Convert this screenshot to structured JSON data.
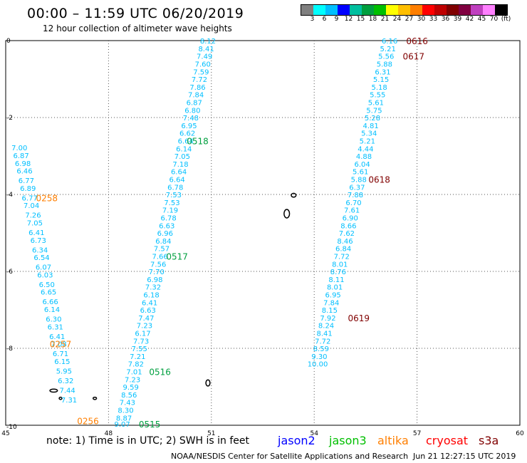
{
  "header": {
    "title": "00:00 – 11:59 UTC 06/20/2019",
    "subtitle": "12 hour collection of altimeter wave heights"
  },
  "legend": {
    "colors": [
      "#808080",
      "#00ffff",
      "#00bfff",
      "#0000ff",
      "#00bf9f",
      "#009f3f",
      "#00bf00",
      "#ffff00",
      "#ffbf00",
      "#ff7f00",
      "#ff0000",
      "#bf0000",
      "#800000",
      "#800040",
      "#bf40bf",
      "#ff80ff",
      "#000000"
    ],
    "labels": [
      "3",
      "6",
      "9",
      "12",
      "15",
      "18",
      "21",
      "24",
      "27",
      "30",
      "33",
      "36",
      "39",
      "42",
      "45",
      "70",
      "(ft)"
    ]
  },
  "chart_data": {
    "type": "scatter",
    "xlim": [
      45,
      60
    ],
    "ylim": [
      -10,
      0
    ],
    "x_ticks": [
      "45",
      "48",
      "51",
      "54",
      "57",
      "60"
    ],
    "y_ticks": [
      "0",
      "-2",
      "-4",
      "-6",
      "-8",
      "-10"
    ],
    "grid": true,
    "series": [
      {
        "name": "altika",
        "color": "#00bfff",
        "points": [
          {
            "x": 45.4,
            "y": -2.8,
            "v": "7.00"
          },
          {
            "x": 45.45,
            "y": -3.0,
            "v": "6.87"
          },
          {
            "x": 45.5,
            "y": -3.2,
            "v": "6.98"
          },
          {
            "x": 45.55,
            "y": -3.4,
            "v": "6.46"
          },
          {
            "x": 45.6,
            "y": -3.65,
            "v": "6.77"
          },
          {
            "x": 45.65,
            "y": -3.85,
            "v": "6.89"
          },
          {
            "x": 45.7,
            "y": -4.1,
            "v": "6.77"
          },
          {
            "x": 45.75,
            "y": -4.3,
            "v": "7.04"
          },
          {
            "x": 45.8,
            "y": -4.55,
            "v": "7.26"
          },
          {
            "x": 45.85,
            "y": -4.75,
            "v": "7.05"
          },
          {
            "x": 45.9,
            "y": -5.0,
            "v": "6.41"
          },
          {
            "x": 45.95,
            "y": -5.2,
            "v": "6.73"
          },
          {
            "x": 46.0,
            "y": -5.45,
            "v": "6.34"
          },
          {
            "x": 46.05,
            "y": -5.65,
            "v": "6.54"
          },
          {
            "x": 46.1,
            "y": -5.9,
            "v": "6.07"
          },
          {
            "x": 46.15,
            "y": -6.1,
            "v": "6.03"
          },
          {
            "x": 46.2,
            "y": -6.35,
            "v": "6.50"
          },
          {
            "x": 46.25,
            "y": -6.55,
            "v": "6.65"
          },
          {
            "x": 46.3,
            "y": -6.8,
            "v": "6.66"
          },
          {
            "x": 46.35,
            "y": -7.0,
            "v": "6.14"
          },
          {
            "x": 46.4,
            "y": -7.25,
            "v": "6.30"
          },
          {
            "x": 46.45,
            "y": -7.45,
            "v": "6.31"
          },
          {
            "x": 46.5,
            "y": -7.7,
            "v": "6.41"
          },
          {
            "x": 46.55,
            "y": -7.9,
            "v": "7.08"
          },
          {
            "x": 46.6,
            "y": -8.15,
            "v": "6.71"
          },
          {
            "x": 46.65,
            "y": -8.35,
            "v": "6.15"
          },
          {
            "x": 46.7,
            "y": -8.6,
            "v": "5.95"
          },
          {
            "x": 46.75,
            "y": -8.85,
            "v": "6.32"
          },
          {
            "x": 46.8,
            "y": -9.1,
            "v": "7.44"
          },
          {
            "x": 46.85,
            "y": -9.35,
            "v": "7.31"
          }
        ]
      },
      {
        "name": "jason3",
        "color": "#00bfff",
        "points": [
          {
            "x": 50.9,
            "y": -0.02,
            "v": "8.12"
          },
          {
            "x": 50.85,
            "y": -0.22,
            "v": "8.41"
          },
          {
            "x": 50.8,
            "y": -0.42,
            "v": "7.49"
          },
          {
            "x": 50.75,
            "y": -0.62,
            "v": "7.60"
          },
          {
            "x": 50.7,
            "y": -0.82,
            "v": "7.59"
          },
          {
            "x": 50.65,
            "y": -1.02,
            "v": "7.72"
          },
          {
            "x": 50.6,
            "y": -1.22,
            "v": "7.86"
          },
          {
            "x": 50.55,
            "y": -1.42,
            "v": "7.84"
          },
          {
            "x": 50.5,
            "y": -1.62,
            "v": "6.87"
          },
          {
            "x": 50.45,
            "y": -1.82,
            "v": "6.80"
          },
          {
            "x": 50.4,
            "y": -2.02,
            "v": "7.48"
          },
          {
            "x": 50.35,
            "y": -2.22,
            "v": "6.95"
          },
          {
            "x": 50.3,
            "y": -2.42,
            "v": "6.62"
          },
          {
            "x": 50.25,
            "y": -2.62,
            "v": "6.64"
          },
          {
            "x": 50.2,
            "y": -2.82,
            "v": "6.14"
          },
          {
            "x": 50.15,
            "y": -3.02,
            "v": "7.05"
          },
          {
            "x": 50.1,
            "y": -3.22,
            "v": "7.18"
          },
          {
            "x": 50.05,
            "y": -3.42,
            "v": "6.64"
          },
          {
            "x": 50.0,
            "y": -3.62,
            "v": "6.64"
          },
          {
            "x": 49.95,
            "y": -3.82,
            "v": "6.78"
          },
          {
            "x": 49.9,
            "y": -4.02,
            "v": "7.53"
          },
          {
            "x": 49.85,
            "y": -4.22,
            "v": "7.53"
          },
          {
            "x": 49.8,
            "y": -4.42,
            "v": "7.19"
          },
          {
            "x": 49.75,
            "y": -4.62,
            "v": "6.78"
          },
          {
            "x": 49.7,
            "y": -4.82,
            "v": "6.63"
          },
          {
            "x": 49.65,
            "y": -5.02,
            "v": "6.96"
          },
          {
            "x": 49.6,
            "y": -5.22,
            "v": "6.84"
          },
          {
            "x": 49.55,
            "y": -5.42,
            "v": "7.57"
          },
          {
            "x": 49.5,
            "y": -5.62,
            "v": "7.66"
          },
          {
            "x": 49.45,
            "y": -5.82,
            "v": "7.56"
          },
          {
            "x": 49.4,
            "y": -6.02,
            "v": "7.70"
          },
          {
            "x": 49.35,
            "y": -6.22,
            "v": "6.98"
          },
          {
            "x": 49.3,
            "y": -6.42,
            "v": "7.32"
          },
          {
            "x": 49.25,
            "y": -6.62,
            "v": "6.18"
          },
          {
            "x": 49.2,
            "y": -6.82,
            "v": "6.41"
          },
          {
            "x": 49.15,
            "y": -7.02,
            "v": "6.63"
          },
          {
            "x": 49.1,
            "y": -7.22,
            "v": "7.47"
          },
          {
            "x": 49.05,
            "y": -7.42,
            "v": "7.23"
          },
          {
            "x": 49.0,
            "y": -7.62,
            "v": "6.17"
          },
          {
            "x": 48.95,
            "y": -7.82,
            "v": "7.73"
          },
          {
            "x": 48.9,
            "y": -8.02,
            "v": "7.55"
          },
          {
            "x": 48.85,
            "y": -8.22,
            "v": "7.21"
          },
          {
            "x": 48.8,
            "y": -8.42,
            "v": "7.82"
          },
          {
            "x": 48.75,
            "y": -8.62,
            "v": "7.01"
          },
          {
            "x": 48.7,
            "y": -8.82,
            "v": "7.23"
          },
          {
            "x": 48.65,
            "y": -9.02,
            "v": "9.59"
          },
          {
            "x": 48.6,
            "y": -9.22,
            "v": "8.56"
          },
          {
            "x": 48.55,
            "y": -9.42,
            "v": "7.43"
          },
          {
            "x": 48.5,
            "y": -9.62,
            "v": "8.30"
          },
          {
            "x": 48.45,
            "y": -9.82,
            "v": "8.87"
          },
          {
            "x": 48.4,
            "y": -9.98,
            "v": "9.07"
          }
        ]
      },
      {
        "name": "s3a",
        "color": "#00bfff",
        "points": [
          {
            "x": 56.2,
            "y": -0.02,
            "v": "6.16"
          },
          {
            "x": 56.15,
            "y": -0.22,
            "v": "5.21"
          },
          {
            "x": 56.1,
            "y": -0.42,
            "v": "5.56"
          },
          {
            "x": 56.05,
            "y": -0.62,
            "v": "5.88"
          },
          {
            "x": 56.0,
            "y": -0.82,
            "v": "6.31"
          },
          {
            "x": 55.95,
            "y": -1.02,
            "v": "5.15"
          },
          {
            "x": 55.9,
            "y": -1.22,
            "v": "5.18"
          },
          {
            "x": 55.85,
            "y": -1.42,
            "v": "5.55"
          },
          {
            "x": 55.8,
            "y": -1.62,
            "v": "5.61"
          },
          {
            "x": 55.75,
            "y": -1.82,
            "v": "5.75"
          },
          {
            "x": 55.7,
            "y": -2.02,
            "v": "5.28"
          },
          {
            "x": 55.65,
            "y": -2.22,
            "v": "4.81"
          },
          {
            "x": 55.6,
            "y": -2.42,
            "v": "5.34"
          },
          {
            "x": 55.55,
            "y": -2.62,
            "v": "5.21"
          },
          {
            "x": 55.5,
            "y": -2.82,
            "v": "4.44"
          },
          {
            "x": 55.45,
            "y": -3.02,
            "v": "4.88"
          },
          {
            "x": 55.4,
            "y": -3.22,
            "v": "6.04"
          },
          {
            "x": 55.35,
            "y": -3.42,
            "v": "5.61"
          },
          {
            "x": 55.3,
            "y": -3.62,
            "v": "5.88"
          },
          {
            "x": 55.25,
            "y": -3.82,
            "v": "6.37"
          },
          {
            "x": 55.2,
            "y": -4.02,
            "v": "7.88"
          },
          {
            "x": 55.15,
            "y": -4.22,
            "v": "6.70"
          },
          {
            "x": 55.1,
            "y": -4.42,
            "v": "7.61"
          },
          {
            "x": 55.05,
            "y": -4.62,
            "v": "6.90"
          },
          {
            "x": 55.0,
            "y": -4.82,
            "v": "8.66"
          },
          {
            "x": 54.95,
            "y": -5.02,
            "v": "7.62"
          },
          {
            "x": 54.9,
            "y": -5.22,
            "v": "8.46"
          },
          {
            "x": 54.85,
            "y": -5.42,
            "v": "6.84"
          },
          {
            "x": 54.8,
            "y": -5.62,
            "v": "7.72"
          },
          {
            "x": 54.75,
            "y": -5.82,
            "v": "8.01"
          },
          {
            "x": 54.7,
            "y": -6.02,
            "v": "8.76"
          },
          {
            "x": 54.65,
            "y": -6.22,
            "v": "8.11"
          },
          {
            "x": 54.6,
            "y": -6.42,
            "v": "8.01"
          },
          {
            "x": 54.55,
            "y": -6.62,
            "v": "6.95"
          },
          {
            "x": 54.5,
            "y": -6.82,
            "v": "7.84"
          },
          {
            "x": 54.45,
            "y": -7.02,
            "v": "8.15"
          },
          {
            "x": 54.4,
            "y": -7.22,
            "v": "7.92"
          },
          {
            "x": 54.35,
            "y": -7.42,
            "v": "8.24"
          },
          {
            "x": 54.3,
            "y": -7.62,
            "v": "8.41"
          },
          {
            "x": 54.25,
            "y": -7.82,
            "v": "7.72"
          },
          {
            "x": 54.2,
            "y": -8.02,
            "v": "8.59"
          },
          {
            "x": 54.15,
            "y": -8.22,
            "v": "9.30"
          },
          {
            "x": 54.1,
            "y": -8.42,
            "v": "10.00"
          }
        ]
      }
    ],
    "time_labels": [
      {
        "x": 46.2,
        "y": -4.1,
        "text": "0258",
        "color": "#ff7f00"
      },
      {
        "x": 46.6,
        "y": -7.9,
        "text": "0257",
        "color": "#ff7f00"
      },
      {
        "x": 47.4,
        "y": -9.9,
        "text": "0256",
        "color": "#ff7f00"
      },
      {
        "x": 50.6,
        "y": -2.62,
        "text": "0518",
        "color": "#009f3f"
      },
      {
        "x": 50.0,
        "y": -5.62,
        "text": "0517",
        "color": "#009f3f"
      },
      {
        "x": 49.5,
        "y": -8.62,
        "text": "0516",
        "color": "#009f3f"
      },
      {
        "x": 49.2,
        "y": -9.98,
        "text": "0515",
        "color": "#009f3f"
      },
      {
        "x": 57.0,
        "y": -0.02,
        "text": "0616",
        "color": "#800000"
      },
      {
        "x": 56.9,
        "y": -0.42,
        "text": "0617",
        "color": "#800000"
      },
      {
        "x": 55.9,
        "y": -3.62,
        "text": "0618",
        "color": "#800000"
      },
      {
        "x": 55.3,
        "y": -7.22,
        "text": "0619",
        "color": "#800000"
      }
    ],
    "land": [
      {
        "x": 53.4,
        "y": -4.02,
        "w": 0.14,
        "h": 0.1
      },
      {
        "x": 53.2,
        "y": -4.5,
        "w": 0.16,
        "h": 0.22
      },
      {
        "x": 50.9,
        "y": -8.9,
        "w": 0.12,
        "h": 0.16
      },
      {
        "x": 46.4,
        "y": -9.1,
        "w": 0.22,
        "h": 0.08
      },
      {
        "x": 46.6,
        "y": -9.3,
        "w": 0.08,
        "h": 0.06
      },
      {
        "x": 47.6,
        "y": -9.3,
        "w": 0.1,
        "h": 0.06
      }
    ]
  },
  "footer": {
    "note": "note:  1) Time is in UTC;  2) SWH is in feet",
    "satellites": [
      {
        "name": "jason2",
        "color": "#0000ff"
      },
      {
        "name": "jason3",
        "color": "#00bf00"
      },
      {
        "name": "altika",
        "color": "#ff7f00"
      },
      {
        "name": "cryosat",
        "color": "#ff0000"
      },
      {
        "name": "s3a",
        "color": "#800000"
      }
    ],
    "credit": "NOAA/NESDIS Center for Satellite Applications and Research",
    "timestamp": "Jun 21 12:27:15 UTC 2019"
  }
}
